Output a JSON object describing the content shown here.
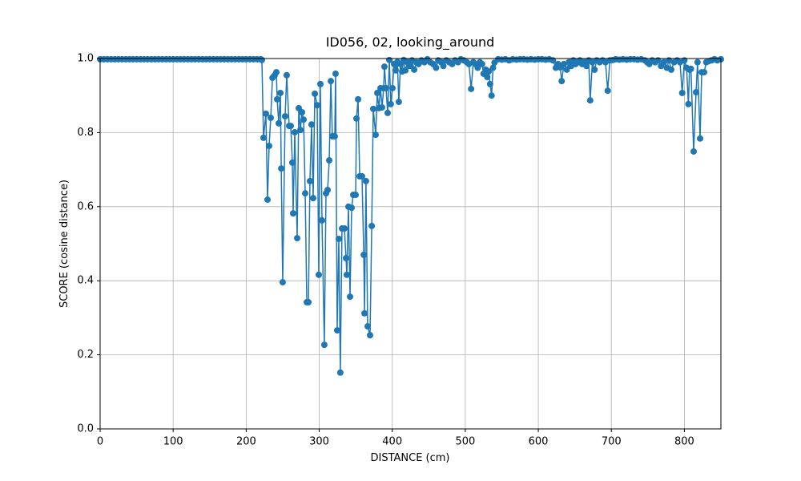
{
  "chart_data": {
    "type": "line",
    "title": "ID056, 02, looking_around",
    "xlabel": "DISTANCE (cm)",
    "ylabel": "SCORE (cosine distance)",
    "color": "#1f77b4",
    "grid": true,
    "xlim": [
      0,
      850
    ],
    "ylim": [
      0,
      1
    ],
    "xticks": [
      0,
      100,
      200,
      300,
      400,
      500,
      600,
      700,
      800
    ],
    "yticks": [
      {
        "value": 0,
        "label": "0.0"
      },
      {
        "value": 0.2,
        "label": "0.2"
      },
      {
        "value": 0.4,
        "label": "0.4"
      },
      {
        "value": 0.6,
        "label": "0.6"
      },
      {
        "value": 0.8,
        "label": "0.8"
      },
      {
        "value": 1,
        "label": "1.0"
      }
    ],
    "x": [
      0,
      5,
      10,
      15,
      20,
      25,
      30,
      35,
      40,
      45,
      50,
      55,
      60,
      65,
      70,
      75,
      80,
      85,
      90,
      95,
      100,
      105,
      110,
      115,
      120,
      125,
      130,
      135,
      140,
      145,
      150,
      155,
      160,
      165,
      170,
      175,
      180,
      185,
      190,
      195,
      200,
      205,
      210,
      215,
      220,
      221.5,
      223.7,
      227,
      229.2,
      231.4,
      233.6,
      236,
      239,
      241.3,
      242.4,
      244.6,
      246.8,
      248,
      250,
      253.3,
      255.5,
      258.8,
      261,
      263.2,
      264.3,
      266.5,
      269.8,
      272,
      274.2,
      276.4,
      278.6,
      280.8,
      283,
      285.2,
      287.3,
      289.5,
      291.7,
      294,
      297.2,
      299.4,
      301.6,
      303.8,
      307,
      309.3,
      311.5,
      313.7,
      315.9,
      318,
      321.3,
      322.4,
      324.6,
      326.8,
      328.9,
      331.2,
      334.5,
      336.7,
      337.8,
      340,
      342.2,
      344.4,
      346.6,
      349.9,
      351,
      353.2,
      355.4,
      358.6,
      361,
      362,
      364,
      366.3,
      369.6,
      371.9,
      374,
      377.3,
      379.5,
      381.7,
      383.9,
      386,
      388.2,
      389.3,
      391.5,
      393.7,
      396,
      398,
      400.3,
      402.5,
      404.7,
      407,
      409,
      411.3,
      413.5,
      415.7,
      418,
      421,
      424,
      427,
      430,
      433,
      436,
      440,
      444,
      448,
      452,
      456,
      460,
      463,
      467,
      470,
      474,
      478,
      482,
      486,
      490,
      494,
      498,
      502,
      505,
      508,
      511,
      514,
      517,
      520,
      523,
      525,
      528,
      530,
      532,
      534,
      536,
      538,
      540,
      545,
      550,
      555,
      560,
      565,
      570,
      575,
      580,
      585,
      590,
      595,
      600,
      605,
      610,
      615,
      620,
      624,
      627,
      630,
      632,
      635,
      639,
      642,
      645,
      648,
      651,
      654,
      657,
      660,
      663,
      666,
      669,
      671,
      674,
      677,
      680,
      684,
      688,
      692,
      695,
      698,
      702,
      706,
      711,
      716,
      721,
      726,
      731,
      736,
      741,
      746,
      749,
      752,
      756,
      760,
      764,
      768,
      772,
      776,
      779,
      782,
      786,
      790,
      794,
      797,
      800,
      803,
      805.5,
      807,
      809,
      812.7,
      816,
      818,
      821.5,
      823.7,
      827,
      830,
      833.5,
      837,
      841,
      845,
      850
    ],
    "values": [
      0.998,
      0.998,
      0.998,
      0.998,
      0.998,
      0.998,
      0.998,
      0.998,
      0.998,
      0.998,
      0.998,
      0.998,
      0.998,
      0.998,
      0.998,
      0.998,
      0.998,
      0.998,
      0.998,
      0.998,
      0.998,
      0.998,
      0.998,
      0.998,
      0.998,
      0.998,
      0.998,
      0.998,
      0.998,
      0.998,
      0.998,
      0.998,
      0.998,
      0.998,
      0.998,
      0.998,
      0.998,
      0.998,
      0.998,
      0.998,
      0.998,
      0.998,
      0.998,
      0.998,
      0.998,
      0.996,
      0.786,
      0.851,
      0.619,
      0.764,
      0.84,
      0.948,
      0.955,
      0.963,
      0.89,
      0.825,
      0.907,
      0.703,
      0.396,
      0.844,
      0.955,
      0.818,
      0.818,
      0.719,
      0.582,
      0.801,
      0.515,
      0.866,
      0.807,
      0.855,
      0.835,
      0.636,
      0.342,
      0.342,
      0.669,
      0.822,
      0.623,
      0.905,
      0.874,
      0.416,
      0.931,
      0.563,
      0.227,
      0.636,
      0.645,
      0.725,
      0.939,
      0.79,
      0.79,
      0.959,
      0.266,
      0.513,
      0.152,
      0.541,
      0.541,
      0.461,
      0.416,
      0.6,
      0.357,
      0.597,
      0.632,
      0.632,
      0.838,
      0.89,
      0.682,
      0.682,
      0.47,
      0.312,
      0.669,
      0.277,
      0.253,
      0.548,
      0.864,
      0.794,
      0.907,
      0.866,
      0.92,
      0.868,
      0.92,
      0.978,
      0.92,
      0.853,
      0.996,
      0.877,
      0.92,
      0.985,
      0.968,
      0.991,
      0.883,
      0.985,
      0.965,
      0.996,
      0.968,
      0.99,
      0.98,
      0.995,
      0.97,
      0.99,
      0.985,
      0.995,
      0.99,
      0.998,
      0.99,
      0.985,
      0.975,
      0.995,
      0.99,
      0.98,
      0.995,
      0.99,
      0.985,
      0.995,
      0.99,
      0.998,
      0.995,
      0.99,
      0.985,
      0.918,
      0.99,
      0.985,
      0.975,
      0.99,
      0.985,
      0.959,
      0.97,
      0.95,
      0.965,
      0.931,
      0.9,
      0.975,
      0.989,
      0.998,
      0.997,
      0.998,
      0.995,
      0.998,
      0.997,
      0.998,
      0.998,
      0.997,
      0.998,
      0.997,
      0.998,
      0.998,
      0.997,
      0.998,
      0.995,
      0.975,
      0.985,
      0.976,
      0.939,
      0.985,
      0.97,
      0.99,
      0.98,
      0.995,
      0.985,
      0.99,
      0.995,
      0.985,
      0.99,
      0.98,
      0.995,
      0.887,
      0.99,
      0.97,
      0.995,
      0.99,
      0.995,
      0.99,
      0.913,
      0.995,
      0.996,
      0.998,
      0.997,
      0.998,
      0.997,
      0.998,
      0.998,
      0.997,
      0.998,
      0.995,
      0.99,
      0.985,
      0.995,
      0.99,
      0.995,
      0.98,
      0.99,
      0.975,
      0.995,
      0.97,
      0.99,
      0.995,
      0.99,
      0.907,
      0.995,
      0.975,
      0.877,
      0.97,
      0.972,
      0.749,
      0.909,
      0.99,
      0.784,
      0.963,
      0.963,
      0.99,
      0.993,
      0.995,
      0.998,
      0.995,
      0.998
    ]
  }
}
